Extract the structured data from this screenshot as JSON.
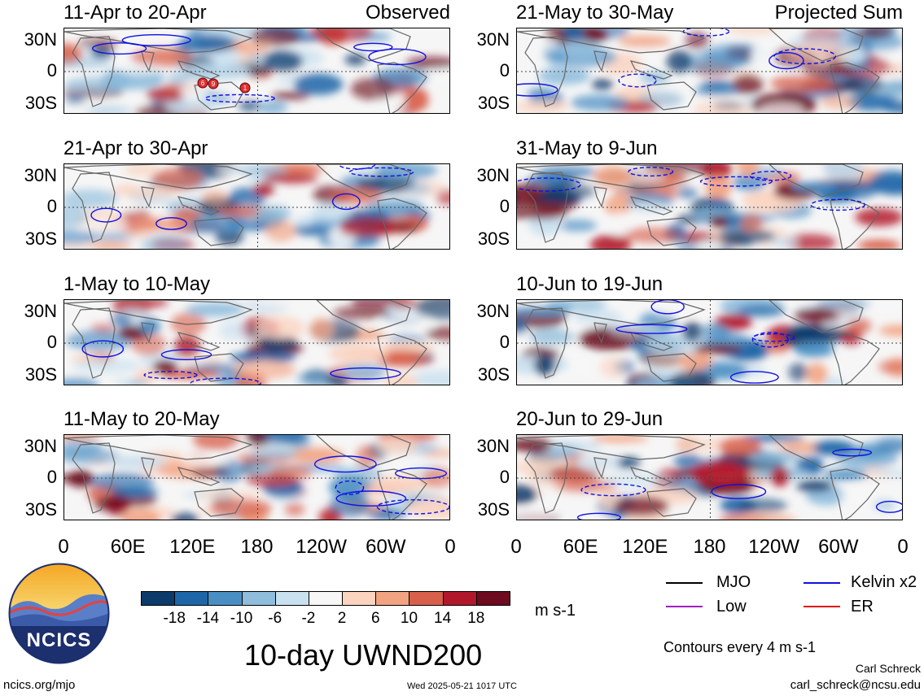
{
  "panels": [
    {
      "title": "11-Apr to 20-Apr",
      "corner": "Observed",
      "col": 0,
      "row": 0
    },
    {
      "title": "21-Apr to 30-Apr",
      "corner": "",
      "col": 0,
      "row": 1
    },
    {
      "title": "1-May to 10-May",
      "corner": "",
      "col": 0,
      "row": 2
    },
    {
      "title": "11-May to 20-May",
      "corner": "",
      "col": 0,
      "row": 3
    },
    {
      "title": "21-May to 30-May",
      "corner": "Projected Sum",
      "col": 1,
      "row": 0
    },
    {
      "title": "31-May to 9-Jun",
      "corner": "",
      "col": 1,
      "row": 1
    },
    {
      "title": "10-Jun to 19-Jun",
      "corner": "",
      "col": 1,
      "row": 2
    },
    {
      "title": "20-Jun to 29-Jun",
      "corner": "",
      "col": 1,
      "row": 3
    }
  ],
  "lat_labels": [
    "30N",
    "0",
    "30S"
  ],
  "lon_labels": [
    "0",
    "60E",
    "120E",
    "180",
    "120W",
    "60W",
    "0"
  ],
  "colorbar": {
    "labels": [
      "-18",
      "-14",
      "-10",
      "-6",
      "-2",
      "2",
      "6",
      "10",
      "14",
      "18"
    ],
    "colors": [
      "#0b3a6b",
      "#1f66a8",
      "#4a8fc4",
      "#8fbddc",
      "#c9e0ef",
      "#f7f7f7",
      "#fbd3bf",
      "#f2a382",
      "#d8604b",
      "#b2182b",
      "#6d0b1f"
    ],
    "unit": "m s-1"
  },
  "title": "10-day UWND200",
  "legend": {
    "mjo": "MJO",
    "kelvin": "Kelvin x2",
    "low": "Low",
    "er": "ER",
    "note": "Contours every 4 m s-1",
    "colors": {
      "mjo": "#000000",
      "kelvin": "#1010e0",
      "low": "#a020c0",
      "er": "#e01010"
    }
  },
  "logo": {
    "text": "NCICS"
  },
  "footer": {
    "url": "ncics.org/mjo",
    "timestamp": "Wed 2025-05-21 1017 UTC",
    "author": "Carl Schreck",
    "email": "carl_schreck@ncsu.edu"
  },
  "markers": [
    "6",
    "9",
    "1"
  ]
}
